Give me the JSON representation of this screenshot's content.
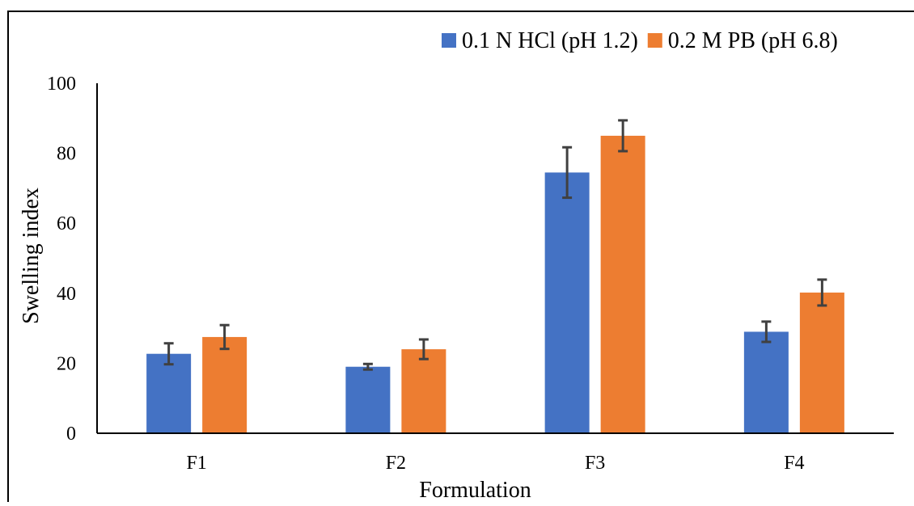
{
  "chart_data": {
    "type": "bar",
    "title": "",
    "xlabel": "Formulation",
    "ylabel": "Swelling index",
    "categories": [
      "F1",
      "F2",
      "F3",
      "F4"
    ],
    "ylim": [
      0,
      100
    ],
    "yticks": [
      0,
      20,
      40,
      60,
      80,
      100
    ],
    "grid": false,
    "legend_position": "top-right",
    "series": [
      {
        "name": "0.1 N HCl (pH 1.2)",
        "color": "#4472C4",
        "values": [
          22.7,
          19.0,
          74.5,
          29.0
        ],
        "errors": [
          3.0,
          0.8,
          7.2,
          2.9
        ]
      },
      {
        "name": "0.2 M PB (pH 6.8)",
        "color": "#ED7D31",
        "values": [
          27.5,
          24.0,
          85.0,
          40.2
        ],
        "errors": [
          3.4,
          2.8,
          4.4,
          3.7
        ]
      }
    ]
  }
}
